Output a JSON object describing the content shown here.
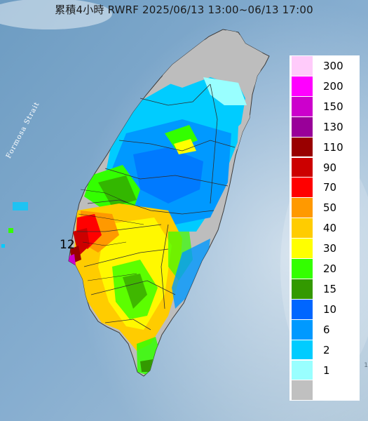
{
  "title": "累積4小時 RWRF 2025/06/13 13:00~06/13 17:00",
  "sea_label": "Formosa Strait",
  "max_value_label": "12",
  "legend": [
    {
      "label": "300",
      "color": "#ffcbfa"
    },
    {
      "label": "200",
      "color": "#ff00ff"
    },
    {
      "label": "150",
      "color": "#cc00cc"
    },
    {
      "label": "130",
      "color": "#990099"
    },
    {
      "label": "110",
      "color": "#990000"
    },
    {
      "label": "90",
      "color": "#cc0000"
    },
    {
      "label": "70",
      "color": "#ff0000"
    },
    {
      "label": "50",
      "color": "#ff9900"
    },
    {
      "label": "40",
      "color": "#ffcc00"
    },
    {
      "label": "30",
      "color": "#ffff00"
    },
    {
      "label": "20",
      "color": "#33ff00"
    },
    {
      "label": "15",
      "color": "#339900"
    },
    {
      "label": "10",
      "color": "#0066ff"
    },
    {
      "label": "6",
      "color": "#0099ff"
    },
    {
      "label": "2",
      "color": "#00ccff"
    },
    {
      "label": "1",
      "color": "#99ffff"
    },
    {
      "label": "",
      "color": "#c0c0c0"
    }
  ]
}
